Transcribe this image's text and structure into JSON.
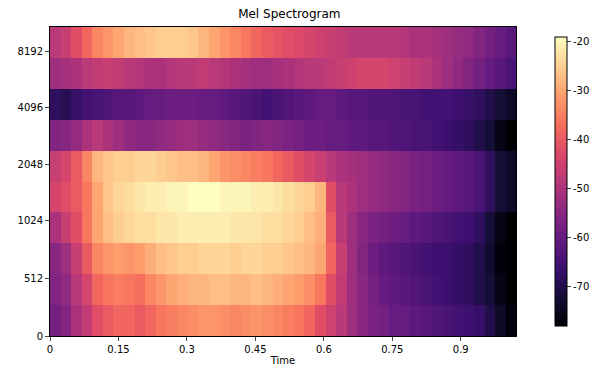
{
  "chart_data": {
    "type": "heatmap",
    "title": "Mel Spectrogram",
    "x_label": "Time",
    "color": "magma",
    "x_edges": [
      0,
      0.023,
      0.046,
      0.07,
      0.093,
      0.116,
      0.139,
      0.163,
      0.186,
      0.209,
      0.232,
      0.255,
      0.279,
      0.302,
      0.325,
      0.348,
      0.372,
      0.395,
      0.418,
      0.441,
      0.464,
      0.488,
      0.511,
      0.534,
      0.557,
      0.58,
      0.604,
      0.627,
      0.65,
      0.673,
      0.697,
      0.72,
      0.743,
      0.766,
      0.789,
      0.813,
      0.836,
      0.859,
      0.882,
      0.905,
      0.929,
      0.952,
      0.975,
      0.998,
      1.021
    ],
    "y_edges": [
      0,
      273,
      546,
      819,
      1136,
      1659,
      2422,
      3536,
      5163,
      7537,
      11025
    ],
    "xlim": [
      0,
      1.021
    ],
    "xticks": [
      0,
      0.15,
      0.3,
      0.45,
      0.6,
      0.75,
      0.9
    ],
    "ylim": [
      0,
      11025
    ],
    "yticks": [
      0,
      512,
      1024,
      2048,
      4096,
      8192
    ],
    "cells": [
      [
        -58,
        -56,
        -50,
        -47,
        -42,
        -40,
        -38,
        -38,
        -40,
        -38,
        -36,
        -35,
        -34,
        -33,
        -32,
        -32,
        -33,
        -34,
        -33,
        -32,
        -33,
        -34,
        -35,
        -36,
        -38,
        -42,
        -45,
        -48,
        -52,
        -55,
        -57,
        -58,
        -60,
        -60,
        -61,
        -62,
        -63,
        -64,
        -65,
        -66,
        -67,
        -70,
        -74,
        -77
      ],
      [
        -56,
        -54,
        -48,
        -44,
        -38,
        -36,
        -35,
        -36,
        -37,
        -34,
        -32,
        -30,
        -29,
        -28,
        -28,
        -27,
        -27,
        -28,
        -28,
        -27,
        -28,
        -29,
        -30,
        -31,
        -33,
        -36,
        -42,
        -47,
        -52,
        -55,
        -58,
        -60,
        -61,
        -62,
        -63,
        -64,
        -65,
        -66,
        -67,
        -68,
        -70,
        -72,
        -76,
        -78
      ],
      [
        -55,
        -52,
        -46,
        -40,
        -34,
        -32,
        -31,
        -32,
        -31,
        -29,
        -27,
        -26,
        -25,
        -25,
        -24,
        -24,
        -24,
        -25,
        -24,
        -24,
        -25,
        -25,
        -26,
        -27,
        -28,
        -30,
        -38,
        -46,
        -52,
        -56,
        -59,
        -61,
        -62,
        -63,
        -64,
        -65,
        -66,
        -66,
        -67,
        -68,
        -70,
        -73,
        -77,
        -78
      ],
      [
        -50,
        -46,
        -42,
        -36,
        -30,
        -27,
        -25,
        -24,
        -23,
        -23,
        -22,
        -22,
        -21,
        -21,
        -21,
        -21,
        -21,
        -22,
        -22,
        -22,
        -23,
        -23,
        -24,
        -25,
        -27,
        -29,
        -40,
        -48,
        -52,
        -55,
        -57,
        -58,
        -59,
        -60,
        -61,
        -62,
        -63,
        -64,
        -65,
        -66,
        -68,
        -72,
        -76,
        -78
      ],
      [
        -44,
        -42,
        -40,
        -36,
        -30,
        -26,
        -24,
        -23,
        -22,
        -21,
        -21,
        -20,
        -20,
        -19,
        -19,
        -19,
        -20,
        -20,
        -20,
        -21,
        -21,
        -22,
        -23,
        -24,
        -25,
        -28,
        -42,
        -48,
        -50,
        -52,
        -53,
        -54,
        -55,
        -56,
        -57,
        -58,
        -59,
        -60,
        -61,
        -62,
        -64,
        -68,
        -72,
        -74
      ],
      [
        -46,
        -44,
        -40,
        -34,
        -28,
        -26,
        -25,
        -25,
        -24,
        -24,
        -25,
        -26,
        -27,
        -27,
        -28,
        -30,
        -32,
        -33,
        -34,
        -35,
        -36,
        -38,
        -40,
        -42,
        -44,
        -46,
        -48,
        -50,
        -51,
        -52,
        -53,
        -54,
        -55,
        -56,
        -57,
        -58,
        -59,
        -60,
        -61,
        -62,
        -64,
        -68,
        -72,
        -74
      ],
      [
        -56,
        -55,
        -53,
        -50,
        -48,
        -50,
        -52,
        -54,
        -55,
        -55,
        -54,
        -53,
        -52,
        -52,
        -53,
        -54,
        -55,
        -56,
        -57,
        -56,
        -55,
        -56,
        -57,
        -58,
        -59,
        -59,
        -60,
        -60,
        -61,
        -61,
        -62,
        -62,
        -63,
        -63,
        -64,
        -64,
        -65,
        -66,
        -67,
        -68,
        -70,
        -72,
        -76,
        -78
      ],
      [
        -68,
        -69,
        -67,
        -65,
        -64,
        -63,
        -62,
        -62,
        -61,
        -60,
        -60,
        -59,
        -59,
        -59,
        -60,
        -60,
        -61,
        -62,
        -63,
        -64,
        -65,
        -64,
        -63,
        -62,
        -61,
        -60,
        -60,
        -61,
        -62,
        -62,
        -63,
        -63,
        -63,
        -64,
        -64,
        -65,
        -65,
        -65,
        -66,
        -67,
        -68,
        -70,
        -72,
        -74
      ],
      [
        -52,
        -51,
        -50,
        -48,
        -47,
        -46,
        -47,
        -48,
        -49,
        -50,
        -50,
        -49,
        -48,
        -48,
        -47,
        -48,
        -49,
        -50,
        -51,
        -52,
        -52,
        -51,
        -50,
        -49,
        -48,
        -48,
        -47,
        -46,
        -45,
        -44,
        -44,
        -44,
        -45,
        -46,
        -47,
        -48,
        -50,
        -52,
        -54,
        -56,
        -58,
        -60,
        -62,
        -64
      ],
      [
        -48,
        -46,
        -42,
        -38,
        -34,
        -32,
        -30,
        -28,
        -27,
        -26,
        -25,
        -25,
        -25,
        -26,
        -28,
        -30,
        -32,
        -34,
        -36,
        -38,
        -40,
        -41,
        -42,
        -43,
        -44,
        -45,
        -46,
        -47,
        -48,
        -48,
        -48,
        -48,
        -48,
        -49,
        -50,
        -50,
        -51,
        -52,
        -53,
        -54,
        -56,
        -58,
        -60,
        -62
      ]
    ],
    "colorbar": {
      "range": [
        -78,
        -19
      ],
      "ticks": [
        -70,
        -60,
        -50,
        -40,
        -30,
        -20
      ]
    }
  }
}
